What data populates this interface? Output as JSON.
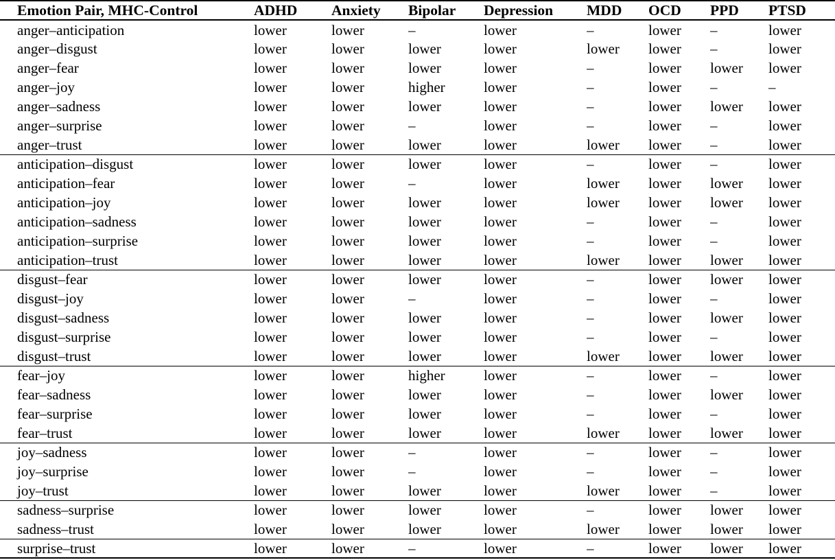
{
  "table": {
    "columns": [
      "Emotion Pair, MHC-Control",
      "ADHD",
      "Anxiety",
      "Bipolar",
      "Depression",
      "MDD",
      "OCD",
      "PPD",
      "PTSD"
    ],
    "groups": [
      {
        "rows": [
          {
            "pair": "anger–anticipation",
            "values": [
              "lower",
              "lower",
              "–",
              "lower",
              "–",
              "lower",
              "–",
              "lower"
            ]
          },
          {
            "pair": "anger–disgust",
            "values": [
              "lower",
              "lower",
              "lower",
              "lower",
              "lower",
              "lower",
              "–",
              "lower"
            ]
          },
          {
            "pair": "anger–fear",
            "values": [
              "lower",
              "lower",
              "lower",
              "lower",
              "–",
              "lower",
              "lower",
              "lower"
            ]
          },
          {
            "pair": "anger–joy",
            "values": [
              "lower",
              "lower",
              "higher",
              "lower",
              "–",
              "lower",
              "–",
              "–"
            ]
          },
          {
            "pair": "anger–sadness",
            "values": [
              "lower",
              "lower",
              "lower",
              "lower",
              "–",
              "lower",
              "lower",
              "lower"
            ]
          },
          {
            "pair": "anger–surprise",
            "values": [
              "lower",
              "lower",
              "–",
              "lower",
              "–",
              "lower",
              "–",
              "lower"
            ]
          },
          {
            "pair": "anger–trust",
            "values": [
              "lower",
              "lower",
              "lower",
              "lower",
              "lower",
              "lower",
              "–",
              "lower"
            ]
          }
        ]
      },
      {
        "rows": [
          {
            "pair": "anticipation–disgust",
            "values": [
              "lower",
              "lower",
              "lower",
              "lower",
              "–",
              "lower",
              "–",
              "lower"
            ]
          },
          {
            "pair": "anticipation–fear",
            "values": [
              "lower",
              "lower",
              "–",
              "lower",
              "lower",
              "lower",
              "lower",
              "lower"
            ]
          },
          {
            "pair": "anticipation–joy",
            "values": [
              "lower",
              "lower",
              "lower",
              "lower",
              "lower",
              "lower",
              "lower",
              "lower"
            ]
          },
          {
            "pair": "anticipation–sadness",
            "values": [
              "lower",
              "lower",
              "lower",
              "lower",
              "–",
              "lower",
              "–",
              "lower"
            ]
          },
          {
            "pair": "anticipation–surprise",
            "values": [
              "lower",
              "lower",
              "lower",
              "lower",
              "–",
              "lower",
              "–",
              "lower"
            ]
          },
          {
            "pair": "anticipation–trust",
            "values": [
              "lower",
              "lower",
              "lower",
              "lower",
              "lower",
              "lower",
              "lower",
              "lower"
            ]
          }
        ]
      },
      {
        "rows": [
          {
            "pair": "disgust–fear",
            "values": [
              "lower",
              "lower",
              "lower",
              "lower",
              "–",
              "lower",
              "lower",
              "lower"
            ]
          },
          {
            "pair": "disgust–joy",
            "values": [
              "lower",
              "lower",
              "–",
              "lower",
              "–",
              "lower",
              "–",
              "lower"
            ]
          },
          {
            "pair": "disgust–sadness",
            "values": [
              "lower",
              "lower",
              "lower",
              "lower",
              "–",
              "lower",
              "lower",
              "lower"
            ]
          },
          {
            "pair": "disgust–surprise",
            "values": [
              "lower",
              "lower",
              "lower",
              "lower",
              "–",
              "lower",
              "–",
              "lower"
            ]
          },
          {
            "pair": "disgust–trust",
            "values": [
              "lower",
              "lower",
              "lower",
              "lower",
              "lower",
              "lower",
              "lower",
              "lower"
            ]
          }
        ]
      },
      {
        "rows": [
          {
            "pair": "fear–joy",
            "values": [
              "lower",
              "lower",
              "higher",
              "lower",
              "–",
              "lower",
              "–",
              "lower"
            ]
          },
          {
            "pair": "fear–sadness",
            "values": [
              "lower",
              "lower",
              "lower",
              "lower",
              "–",
              "lower",
              "lower",
              "lower"
            ]
          },
          {
            "pair": "fear–surprise",
            "values": [
              "lower",
              "lower",
              "lower",
              "lower",
              "–",
              "lower",
              "–",
              "lower"
            ]
          },
          {
            "pair": "fear–trust",
            "values": [
              "lower",
              "lower",
              "lower",
              "lower",
              "lower",
              "lower",
              "lower",
              "lower"
            ]
          }
        ]
      },
      {
        "rows": [
          {
            "pair": "joy–sadness",
            "values": [
              "lower",
              "lower",
              "–",
              "lower",
              "–",
              "lower",
              "–",
              "lower"
            ]
          },
          {
            "pair": "joy–surprise",
            "values": [
              "lower",
              "lower",
              "–",
              "lower",
              "–",
              "lower",
              "–",
              "lower"
            ]
          },
          {
            "pair": "joy–trust",
            "values": [
              "lower",
              "lower",
              "lower",
              "lower",
              "lower",
              "lower",
              "–",
              "lower"
            ]
          }
        ]
      },
      {
        "rows": [
          {
            "pair": "sadness–surprise",
            "values": [
              "lower",
              "lower",
              "lower",
              "lower",
              "–",
              "lower",
              "lower",
              "lower"
            ]
          },
          {
            "pair": "sadness–trust",
            "values": [
              "lower",
              "lower",
              "lower",
              "lower",
              "lower",
              "lower",
              "lower",
              "lower"
            ]
          }
        ]
      },
      {
        "rows": [
          {
            "pair": "surprise–trust",
            "values": [
              "lower",
              "lower",
              "–",
              "lower",
              "–",
              "lower",
              "lower",
              "lower"
            ]
          }
        ]
      }
    ]
  }
}
